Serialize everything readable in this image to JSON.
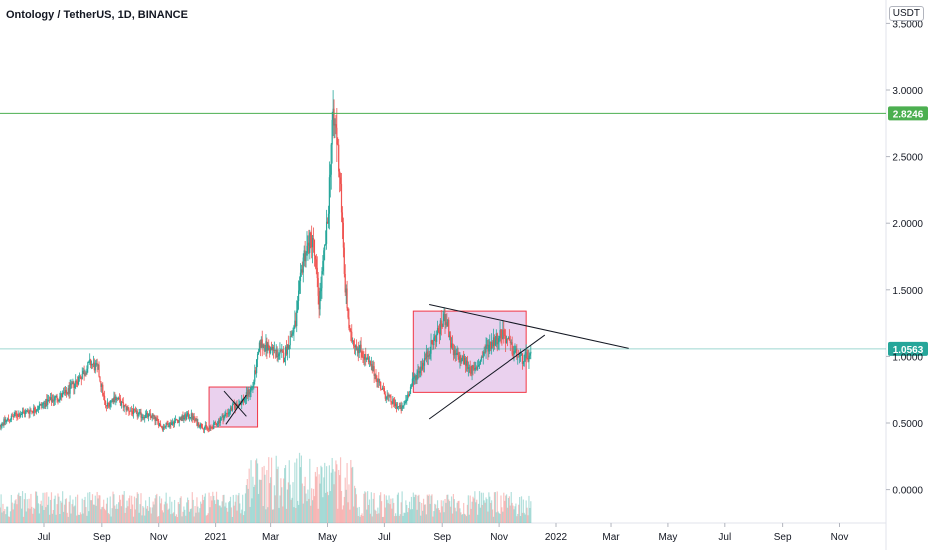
{
  "header": {
    "title": "Ontology / TetherUS, 1D, BINANCE",
    "unit_label": "USDT"
  },
  "chart_data": {
    "type": "candlestick",
    "title": "Ontology / TetherUS, 1D, BINANCE",
    "ylim": [
      -0.25,
      3.55
    ],
    "y_ticks": [
      {
        "value": 3.5,
        "label": "3.5000"
      },
      {
        "value": 3.0,
        "label": "3.0000"
      },
      {
        "value": 2.5,
        "label": "2.5000"
      },
      {
        "value": 2.0,
        "label": "2.0000"
      },
      {
        "value": 1.5,
        "label": "1.5000"
      },
      {
        "value": 1.0,
        "label": "1.0000"
      },
      {
        "value": 0.5,
        "label": "0.5000"
      },
      {
        "value": 0.0,
        "label": "0.0000"
      }
    ],
    "x_ticks": [
      {
        "date": "2020-07-01",
        "label": "Jul"
      },
      {
        "date": "2020-09-01",
        "label": "Sep"
      },
      {
        "date": "2020-11-01",
        "label": "Nov"
      },
      {
        "date": "2021-01-01",
        "label": "2021"
      },
      {
        "date": "2021-03-01",
        "label": "Mar"
      },
      {
        "date": "2021-05-01",
        "label": "May"
      },
      {
        "date": "2021-07-01",
        "label": "Jul"
      },
      {
        "date": "2021-09-01",
        "label": "Sep"
      },
      {
        "date": "2021-11-01",
        "label": "Nov"
      },
      {
        "date": "2022-01-01",
        "label": "2022"
      },
      {
        "date": "2022-03-01",
        "label": "Mar"
      },
      {
        "date": "2022-05-01",
        "label": "May"
      },
      {
        "date": "2022-07-01",
        "label": "Jul"
      },
      {
        "date": "2022-09-01",
        "label": "Sep"
      },
      {
        "date": "2022-11-01",
        "label": "Nov"
      }
    ],
    "x_range": [
      "2020-05-10",
      "2023-01-01"
    ],
    "price_anchors": [
      [
        "2020-05-10",
        0.47
      ],
      [
        "2020-06-01",
        0.56
      ],
      [
        "2020-06-20",
        0.6
      ],
      [
        "2020-07-05",
        0.66
      ],
      [
        "2020-07-25",
        0.72
      ],
      [
        "2020-08-10",
        0.86
      ],
      [
        "2020-08-20",
        0.95
      ],
      [
        "2020-08-28",
        0.9
      ],
      [
        "2020-09-05",
        0.62
      ],
      [
        "2020-09-15",
        0.7
      ],
      [
        "2020-09-25",
        0.62
      ],
      [
        "2020-10-10",
        0.56
      ],
      [
        "2020-10-25",
        0.55
      ],
      [
        "2020-11-05",
        0.47
      ],
      [
        "2020-11-20",
        0.52
      ],
      [
        "2020-12-05",
        0.56
      ],
      [
        "2020-12-12",
        0.5
      ],
      [
        "2020-12-25",
        0.45
      ],
      [
        "2021-01-05",
        0.52
      ],
      [
        "2021-01-20",
        0.62
      ],
      [
        "2021-02-01",
        0.68
      ],
      [
        "2021-02-10",
        0.78
      ],
      [
        "2021-02-18",
        1.1
      ],
      [
        "2021-03-01",
        1.05
      ],
      [
        "2021-03-15",
        1.0
      ],
      [
        "2021-03-28",
        1.25
      ],
      [
        "2021-04-05",
        1.75
      ],
      [
        "2021-04-15",
        1.9
      ],
      [
        "2021-04-22",
        1.4
      ],
      [
        "2021-05-01",
        2.0
      ],
      [
        "2021-05-06",
        2.75
      ],
      [
        "2021-05-10",
        2.7
      ],
      [
        "2021-05-15",
        2.3
      ],
      [
        "2021-05-19",
        1.6
      ],
      [
        "2021-05-25",
        1.15
      ],
      [
        "2021-06-05",
        1.05
      ],
      [
        "2021-06-20",
        0.88
      ],
      [
        "2021-07-01",
        0.72
      ],
      [
        "2021-07-10",
        0.65
      ],
      [
        "2021-07-20",
        0.6
      ],
      [
        "2021-08-01",
        0.82
      ],
      [
        "2021-08-15",
        1.0
      ],
      [
        "2021-08-25",
        1.15
      ],
      [
        "2021-09-05",
        1.3
      ],
      [
        "2021-09-12",
        1.02
      ],
      [
        "2021-09-25",
        0.96
      ],
      [
        "2021-10-05",
        0.88
      ],
      [
        "2021-10-20",
        1.08
      ],
      [
        "2021-11-05",
        1.18
      ],
      [
        "2021-11-15",
        1.05
      ],
      [
        "2021-11-25",
        0.98
      ],
      [
        "2021-12-05",
        1.0
      ]
    ],
    "last_price": {
      "value": 1.0563,
      "label": "1.0563",
      "color": "#26a69a"
    },
    "resistance": {
      "value": 2.8246,
      "label": "2.8246",
      "color": "#4caf50"
    },
    "boxes": [
      {
        "x0": "2020-12-25",
        "x1": "2021-02-15",
        "y0": 0.47,
        "y1": 0.77
      },
      {
        "x0": "2021-08-01",
        "x1": "2021-11-30",
        "y0": 0.73,
        "y1": 1.34
      }
    ],
    "trendlines": [
      {
        "x0": "2021-01-10",
        "y0": 0.74,
        "x1": "2021-02-03",
        "y1": 0.55
      },
      {
        "x0": "2021-01-12",
        "y0": 0.49,
        "x1": "2021-02-03",
        "y1": 0.71
      },
      {
        "x0": "2021-08-18",
        "y0": 1.39,
        "x1": "2022-03-20",
        "y1": 1.06
      },
      {
        "x0": "2021-08-18",
        "y0": 0.53,
        "x1": "2021-12-20",
        "y1": 1.16
      }
    ],
    "colors": {
      "up": "#26a69a",
      "down": "#ef5350",
      "box_fill": "#e1bee7",
      "box_stroke": "#f23645",
      "line": "#131722"
    }
  }
}
